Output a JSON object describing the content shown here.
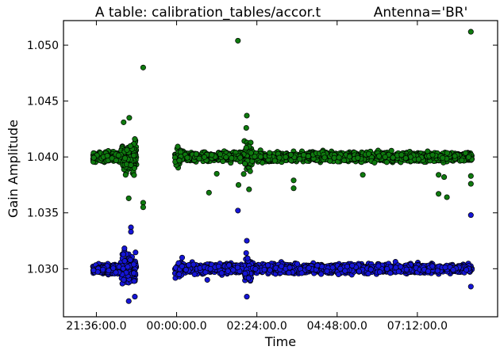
{
  "chart_data": {
    "type": "scatter",
    "title": "A table: calibration_tables/accor.t",
    "subtitle": "Antenna='BR'",
    "xlabel": "Time",
    "ylabel": "Gain Amplitude",
    "xlim": [
      "20:37:00",
      "09:36:00"
    ],
    "ylim": [
      1.0257,
      1.0522
    ],
    "x_ticks": [
      "21:36:00.0",
      "00:00:00.0",
      "02:24:00.0",
      "04:48:00.0",
      "07:12:00.0"
    ],
    "y_ticks": [
      "1.030",
      "1.035",
      "1.040",
      "1.045",
      "1.050"
    ],
    "grid": false,
    "segments": [
      {
        "start": "21:30:00",
        "end": "22:48:00"
      },
      {
        "start": "23:57:00",
        "end": "08:50:00"
      }
    ],
    "series": [
      {
        "color": "#0e7a0e",
        "baseline": 1.04,
        "points": [
          {
            "x": "23:00:00",
            "y": 1.048
          },
          {
            "x": "01:50:00",
            "y": 1.0504
          },
          {
            "x": "08:48:00",
            "y": 1.0512
          },
          {
            "x": "22:35:00",
            "y": 1.0435
          },
          {
            "x": "22:25:00",
            "y": 1.0431
          },
          {
            "x": "22:45:00",
            "y": 1.0416
          },
          {
            "x": "23:00:00",
            "y": 1.0359
          },
          {
            "x": "23:00:00",
            "y": 1.0355
          },
          {
            "x": "22:34:00",
            "y": 1.0363
          },
          {
            "x": "00:58:00",
            "y": 1.0368
          },
          {
            "x": "01:51:00",
            "y": 1.0375
          },
          {
            "x": "02:10:00",
            "y": 1.0371
          },
          {
            "x": "03:30:00",
            "y": 1.0379
          },
          {
            "x": "03:30:00",
            "y": 1.0372
          },
          {
            "x": "05:34:00",
            "y": 1.0384
          },
          {
            "x": "07:50:00",
            "y": 1.0384
          },
          {
            "x": "08:00:00",
            "y": 1.0382
          },
          {
            "x": "07:50:00",
            "y": 1.0367
          },
          {
            "x": "08:05:00",
            "y": 1.0364
          },
          {
            "x": "08:48:00",
            "y": 1.0376
          },
          {
            "x": "08:48:00",
            "y": 1.0383
          },
          {
            "x": "02:06:00",
            "y": 1.0437
          },
          {
            "x": "02:05:00",
            "y": 1.0426
          },
          {
            "x": "01:12:00",
            "y": 1.0385
          }
        ]
      },
      {
        "color": "#1515d6",
        "baseline": 1.03,
        "points": [
          {
            "x": "01:50:00",
            "y": 1.0352
          },
          {
            "x": "08:48:00",
            "y": 1.0348
          },
          {
            "x": "22:38:00",
            "y": 1.0337
          },
          {
            "x": "22:38:00",
            "y": 1.0333
          },
          {
            "x": "22:34:00",
            "y": 1.0271
          },
          {
            "x": "22:45:00",
            "y": 1.0275
          },
          {
            "x": "02:06:00",
            "y": 1.0325
          },
          {
            "x": "02:06:00",
            "y": 1.0275
          },
          {
            "x": "00:55:00",
            "y": 1.029
          },
          {
            "x": "08:48:00",
            "y": 1.0284
          }
        ]
      }
    ]
  }
}
